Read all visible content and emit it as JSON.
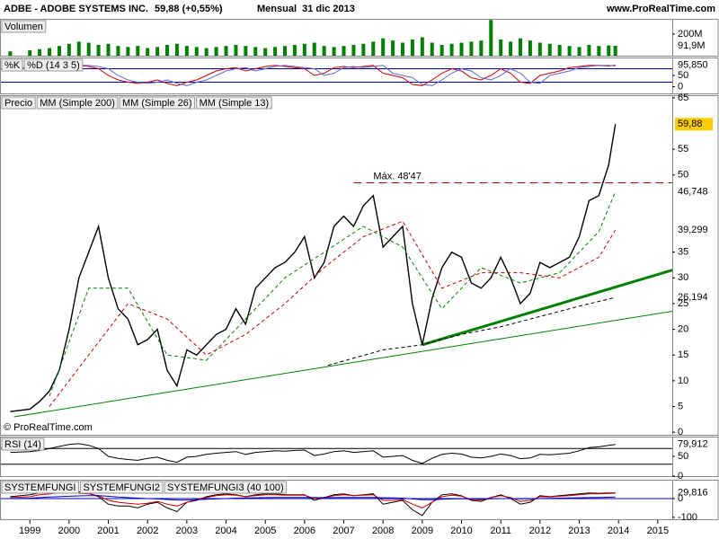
{
  "chart_data": {
    "type": "stock",
    "title": "ADBE - ADOBE SYSTEMS INC.",
    "subtitle": "59,88 (+0,55%)",
    "period": "Mensual  31 dic 2013",
    "website": "www.ProRealTime.com",
    "source": "© ProRealTime.com",
    "xlim": [
      1998.24,
      2015.37
    ],
    "xticks": [
      1999,
      2000,
      2001,
      2002,
      2003,
      2004,
      2005,
      2006,
      2007,
      2008,
      2009,
      2010,
      2011,
      2012,
      2013,
      2014,
      2015
    ],
    "x": [
      1998.5,
      1999,
      1999.25,
      1999.5,
      1999.75,
      2000,
      2000.25,
      2000.5,
      2000.75,
      2001,
      2001.25,
      2001.5,
      2001.75,
      2002,
      2002.25,
      2002.5,
      2002.75,
      2003,
      2003.25,
      2003.5,
      2003.75,
      2004,
      2004.25,
      2004.5,
      2004.75,
      2005,
      2005.25,
      2005.5,
      2005.75,
      2006,
      2006.25,
      2006.5,
      2006.75,
      2007,
      2007.25,
      2007.5,
      2007.75,
      2008,
      2008.25,
      2008.5,
      2008.75,
      2009,
      2009.25,
      2009.5,
      2009.75,
      2010,
      2010.25,
      2010.5,
      2010.75,
      2011,
      2011.25,
      2011.5,
      2011.75,
      2012,
      2012.25,
      2012.5,
      2012.75,
      2013,
      2013.25,
      2013.5,
      2013.75,
      2013.92
    ],
    "panels": [
      {
        "type": "bar",
        "ylim": [
          0,
          340
        ],
        "yticks": [
          {
            "value": 200,
            "label": "200M"
          }
        ],
        "series": [
          {
            "name": "Volumen",
            "color": "#008000",
            "value_label": "91,9M",
            "values": [
              40,
              50,
              60,
              70,
              90,
              110,
              130,
              120,
              100,
              110,
              90,
              80,
              90,
              70,
              80,
              100,
              110,
              90,
              80,
              70,
              80,
              90,
              100,
              90,
              80,
              70,
              80,
              90,
              100,
              110,
              120,
              90,
              80,
              90,
              100,
              110,
              130,
              160,
              140,
              120,
              150,
              170,
              120,
              100,
              110,
              120,
              130,
              140,
              330,
              150,
              130,
              160,
              140,
              120,
              110,
              100,
              90,
              80,
              100,
              90,
              95,
              91.9
            ]
          }
        ]
      },
      {
        "type": "line",
        "ylim": [
          -30,
          130
        ],
        "yticks": [
          50,
          0
        ],
        "levels": [
          80,
          20
        ],
        "level_color": "#0000aa",
        "series": [
          {
            "name": "%K",
            "color": "#cc0000",
            "value_label": "95,850",
            "values": [
              80,
              85,
              90,
              95,
              95,
              95,
              95,
              90,
              80,
              50,
              30,
              20,
              15,
              20,
              30,
              15,
              5,
              20,
              30,
              50,
              70,
              80,
              85,
              70,
              80,
              90,
              95,
              90,
              85,
              80,
              50,
              60,
              85,
              90,
              85,
              90,
              95,
              60,
              50,
              40,
              10,
              5,
              30,
              60,
              80,
              70,
              40,
              30,
              50,
              80,
              60,
              20,
              15,
              50,
              60,
              70,
              85,
              90,
              95,
              95,
              92,
              95.85
            ]
          },
          {
            "name": "%D (14 3 5)",
            "color": "#6666cc",
            "values": [
              80,
              80,
              85,
              90,
              95,
              95,
              95,
              95,
              90,
              80,
              50,
              30,
              20,
              15,
              20,
              30,
              15,
              5,
              20,
              30,
              50,
              70,
              80,
              85,
              70,
              80,
              90,
              95,
              90,
              85,
              80,
              50,
              60,
              85,
              90,
              85,
              90,
              95,
              60,
              50,
              40,
              10,
              5,
              30,
              60,
              80,
              70,
              40,
              30,
              50,
              80,
              60,
              20,
              15,
              50,
              60,
              70,
              85,
              90,
              95,
              95,
              92
            ]
          }
        ]
      },
      {
        "type": "line",
        "ylim": [
          -0.5,
          65.5
        ],
        "yticks": [
          65,
          55,
          50,
          35,
          30,
          25,
          20,
          15,
          10,
          5,
          0
        ],
        "series": [
          {
            "name": "Precio",
            "color": "#000000",
            "value_label": "59,88",
            "values": [
              4,
              4.5,
              6,
              8,
              12,
              20,
              30,
              35,
              40,
              30,
              24,
              22,
              17,
              18,
              20,
              12,
              9,
              16,
              15,
              17,
              19,
              20,
              24,
              21,
              28,
              30,
              32,
              33,
              35,
              38,
              30,
              33,
              40,
              42,
              40,
              44,
              46,
              36,
              38,
              40,
              25,
              17,
              26,
              32,
              35,
              34,
              29,
              28,
              30,
              34,
              30,
              25,
              27,
              33,
              32,
              33,
              34,
              38,
              45,
              46,
              52,
              59.88
            ]
          },
          {
            "name": "MM (Simple 200)",
            "color": "#000000",
            "value_label": "26,194",
            "x": [
              2006.6,
              2008,
              2009,
              2010,
              2011,
              2012,
              2013,
              2013.92
            ],
            "values": [
              13,
              16,
              17,
              19,
              20.5,
              22.5,
              24.5,
              26.194
            ]
          },
          {
            "name": "MM (Simple 26)",
            "color": "#cc0000",
            "value_label": "39,299",
            "x": [
              1999.5,
              2000.5,
              2001.5,
              2002.5,
              2003.5,
              2004.5,
              2005.5,
              2006.5,
              2007.5,
              2008.5,
              2009.5,
              2010.5,
              2011.5,
              2012.5,
              2013.5,
              2013.92
            ],
            "values": [
              5,
              15,
              25,
              22,
              15,
              19,
              25,
              32,
              38,
              41,
              28,
              31,
              31,
              30,
              34,
              39.299
            ]
          },
          {
            "name": "MM (Simple 13)",
            "color": "#008000",
            "value_label": "46,748",
            "x": [
              1999.5,
              2000.5,
              2001.5,
              2002.5,
              2003.5,
              2004.5,
              2005.5,
              2006.5,
              2007.5,
              2008.5,
              2009.5,
              2010.5,
              2011.5,
              2012.5,
              2013.5,
              2013.92
            ],
            "values": [
              7,
              28,
              28,
              15,
              14,
              22,
              30,
              35,
              40,
              36,
              24,
              32,
              29,
              31,
              39,
              46.748
            ]
          }
        ],
        "trendlines": [
          {
            "color": "#008000",
            "width": 1,
            "x": [
              1998.6,
              2015.37
            ],
            "values": [
              3,
              23.5
            ]
          },
          {
            "color": "#008000",
            "width": 3,
            "x": [
              2009,
              2015.37
            ],
            "values": [
              17,
              31.5
            ]
          }
        ],
        "annotations": [
          {
            "text": "Máx. 48'47",
            "value": 48.47,
            "x": 2007.25,
            "color": "#aa0000"
          }
        ]
      },
      {
        "type": "line",
        "ylim": [
          0,
          100
        ],
        "yticks": [
          50,
          0
        ],
        "levels": [
          70,
          30
        ],
        "level_color": "#000000",
        "series": [
          {
            "name": "RSI (14)",
            "color": "#000000",
            "value_label": "79,912",
            "values": [
              60,
              62,
              65,
              70,
              75,
              80,
              82,
              78,
              70,
              50,
              45,
              42,
              40,
              45,
              48,
              40,
              35,
              48,
              50,
              55,
              58,
              60,
              62,
              55,
              60,
              62,
              64,
              63,
              65,
              66,
              52,
              56,
              62,
              64,
              60,
              62,
              64,
              48,
              50,
              52,
              40,
              32,
              45,
              55,
              58,
              56,
              48,
              46,
              50,
              56,
              52,
              44,
              46,
              55,
              54,
              56,
              58,
              64,
              72,
              74,
              78,
              79.912
            ]
          }
        ]
      },
      {
        "type": "line",
        "ylim": [
          -110,
          100
        ],
        "yticks": [
          0,
          -100
        ],
        "levels": [
          0
        ],
        "level_color": "#0000aa",
        "series": [
          {
            "name": "SYSTEMFUNGI",
            "color": "#000000",
            "value_label": "29,816",
            "values": [
              10,
              20,
              30,
              35,
              40,
              40,
              35,
              30,
              10,
              -30,
              -40,
              -40,
              -50,
              -30,
              -20,
              -50,
              -70,
              -20,
              -10,
              10,
              20,
              25,
              20,
              10,
              20,
              25,
              25,
              20,
              20,
              20,
              -10,
              5,
              20,
              25,
              15,
              20,
              25,
              -30,
              -20,
              -10,
              -60,
              -90,
              -20,
              20,
              25,
              15,
              -10,
              -15,
              5,
              20,
              0,
              -30,
              -20,
              15,
              10,
              15,
              20,
              25,
              30,
              28,
              30,
              29.816
            ]
          },
          {
            "name": "SYSTEMFUNGI2",
            "color": "#cc0000",
            "values": [
              5,
              10,
              20,
              25,
              30,
              30,
              28,
              25,
              15,
              -10,
              -20,
              -25,
              -30,
              -25,
              -15,
              -30,
              -40,
              -20,
              -5,
              5,
              15,
              20,
              18,
              10,
              15,
              20,
              20,
              18,
              18,
              18,
              0,
              5,
              15,
              20,
              15,
              18,
              20,
              -10,
              -10,
              -5,
              -30,
              -50,
              -20,
              10,
              18,
              12,
              -5,
              -8,
              5,
              15,
              5,
              -15,
              -10,
              10,
              8,
              12,
              15,
              20,
              25,
              25,
              27,
              28
            ]
          },
          {
            "name": "SYSTEMFUNGI3 (40 100)",
            "color": "#0000cc",
            "values": [
              0,
              2,
              5,
              8,
              10,
              12,
              14,
              15,
              15,
              12,
              8,
              5,
              2,
              0,
              -2,
              -5,
              -8,
              -8,
              -6,
              -4,
              -2,
              0,
              2,
              3,
              4,
              5,
              6,
              6,
              6,
              6,
              5,
              5,
              5,
              6,
              6,
              6,
              6,
              4,
              3,
              2,
              -2,
              -6,
              -6,
              -4,
              -2,
              -1,
              -1,
              -2,
              -1,
              0,
              0,
              -1,
              -1,
              0,
              1,
              2,
              3,
              4,
              5,
              6,
              7,
              8
            ]
          }
        ]
      }
    ]
  }
}
